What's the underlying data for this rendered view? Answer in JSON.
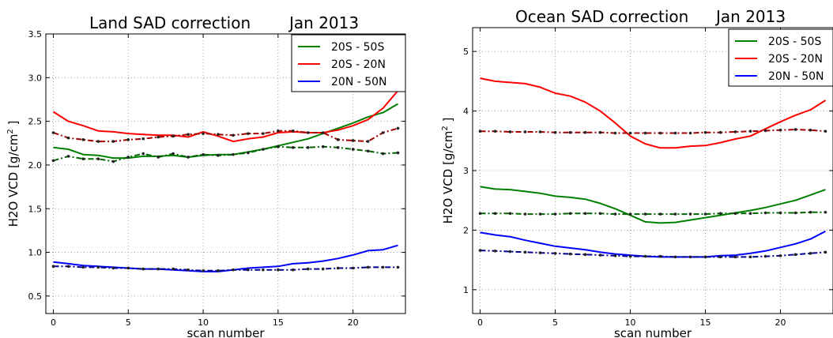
{
  "chart_data": [
    {
      "type": "line",
      "title": "Land SAD correction",
      "subtitle": "Jan 2013",
      "xlabel": "scan number",
      "ylabel_prefix": "H2O VCD [g/cm",
      "ylabel_sup": "2",
      "ylabel_suffix": " ]",
      "xlim": [
        -0.5,
        23.5
      ],
      "ylim": [
        0.3,
        3.5
      ],
      "xticks": [
        0,
        5,
        10,
        15,
        20
      ],
      "yticks": [
        0.5,
        1.0,
        1.5,
        2.0,
        2.5,
        3.0,
        3.5
      ],
      "ytick_labels": [
        "0.5",
        "1.0",
        "1.5",
        "2.0",
        "2.5",
        "3.0",
        "3.5"
      ],
      "grid": true,
      "legend_position": "top-right",
      "x": [
        0,
        1,
        2,
        3,
        4,
        5,
        6,
        7,
        8,
        9,
        10,
        11,
        12,
        13,
        14,
        15,
        16,
        17,
        18,
        19,
        20,
        21,
        22,
        23
      ],
      "series": [
        {
          "name": "20S - 50S",
          "color": "#008000",
          "style": "solid",
          "values": [
            2.2,
            2.18,
            2.12,
            2.11,
            2.08,
            2.08,
            2.1,
            2.1,
            2.11,
            2.09,
            2.11,
            2.12,
            2.12,
            2.15,
            2.18,
            2.22,
            2.26,
            2.3,
            2.36,
            2.42,
            2.48,
            2.55,
            2.6,
            2.7
          ]
        },
        {
          "name": "20S - 20N",
          "color": "#ff0000",
          "style": "solid",
          "values": [
            2.61,
            2.5,
            2.45,
            2.39,
            2.38,
            2.36,
            2.35,
            2.34,
            2.34,
            2.32,
            2.38,
            2.33,
            2.27,
            2.3,
            2.32,
            2.37,
            2.38,
            2.37,
            2.37,
            2.4,
            2.45,
            2.52,
            2.65,
            2.85
          ]
        },
        {
          "name": "20N - 50N",
          "color": "#0000ff",
          "style": "solid",
          "values": [
            0.89,
            0.87,
            0.85,
            0.84,
            0.83,
            0.82,
            0.81,
            0.81,
            0.8,
            0.79,
            0.78,
            0.78,
            0.8,
            0.82,
            0.83,
            0.84,
            0.87,
            0.88,
            0.9,
            0.93,
            0.97,
            1.02,
            1.03,
            1.08
          ]
        },
        {
          "name": "",
          "color": "#006400",
          "style": "dashdot",
          "values": [
            2.05,
            2.1,
            2.07,
            2.07,
            2.04,
            2.09,
            2.13,
            2.09,
            2.13,
            2.09,
            2.12,
            2.11,
            2.12,
            2.14,
            2.18,
            2.21,
            2.2,
            2.2,
            2.21,
            2.2,
            2.18,
            2.16,
            2.13,
            2.14
          ]
        },
        {
          "name": "",
          "color": "#a00000",
          "style": "dashdot",
          "values": [
            2.37,
            2.31,
            2.29,
            2.27,
            2.27,
            2.29,
            2.3,
            2.32,
            2.33,
            2.35,
            2.36,
            2.35,
            2.34,
            2.36,
            2.36,
            2.39,
            2.39,
            2.37,
            2.37,
            2.29,
            2.28,
            2.27,
            2.37,
            2.42
          ]
        },
        {
          "name": "",
          "color": "#00008b",
          "style": "dashdot",
          "values": [
            0.84,
            0.84,
            0.83,
            0.83,
            0.82,
            0.82,
            0.81,
            0.81,
            0.81,
            0.8,
            0.79,
            0.79,
            0.8,
            0.8,
            0.8,
            0.8,
            0.8,
            0.81,
            0.81,
            0.82,
            0.82,
            0.83,
            0.83,
            0.83
          ]
        }
      ]
    },
    {
      "type": "line",
      "title": "Ocean SAD correction",
      "subtitle": "Jan 2013",
      "xlabel": "scan number",
      "ylabel_prefix": "H2O VCD [g/cm",
      "ylabel_sup": "2",
      "ylabel_suffix": " ]",
      "xlim": [
        -0.5,
        23.5
      ],
      "ylim": [
        0.6,
        5.4
      ],
      "xticks": [
        0,
        5,
        10,
        15,
        20
      ],
      "yticks": [
        1,
        2,
        3,
        4,
        5
      ],
      "ytick_labels": [
        "1",
        "2",
        "3",
        "4",
        "5"
      ],
      "grid": true,
      "legend_position": "top-right",
      "x": [
        0,
        1,
        2,
        3,
        4,
        5,
        6,
        7,
        8,
        9,
        10,
        11,
        12,
        13,
        14,
        15,
        16,
        17,
        18,
        19,
        20,
        21,
        22,
        23
      ],
      "series": [
        {
          "name": "20S - 50S",
          "color": "#008000",
          "style": "solid",
          "values": [
            2.73,
            2.69,
            2.68,
            2.65,
            2.62,
            2.57,
            2.55,
            2.52,
            2.45,
            2.36,
            2.25,
            2.14,
            2.12,
            2.13,
            2.17,
            2.21,
            2.25,
            2.29,
            2.33,
            2.38,
            2.44,
            2.5,
            2.59,
            2.68
          ]
        },
        {
          "name": "20S - 20N",
          "color": "#ff0000",
          "style": "solid",
          "values": [
            4.55,
            4.5,
            4.48,
            4.46,
            4.4,
            4.3,
            4.25,
            4.15,
            4.0,
            3.8,
            3.58,
            3.45,
            3.38,
            3.38,
            3.41,
            3.42,
            3.47,
            3.53,
            3.58,
            3.7,
            3.82,
            3.93,
            4.02,
            4.18
          ]
        },
        {
          "name": "20N - 50N",
          "color": "#0000ff",
          "style": "solid",
          "values": [
            1.96,
            1.92,
            1.89,
            1.83,
            1.78,
            1.73,
            1.7,
            1.67,
            1.63,
            1.6,
            1.58,
            1.56,
            1.55,
            1.55,
            1.55,
            1.55,
            1.57,
            1.58,
            1.61,
            1.65,
            1.71,
            1.77,
            1.85,
            1.98
          ]
        },
        {
          "name": "",
          "color": "#006400",
          "style": "dashdot",
          "values": [
            2.28,
            2.28,
            2.28,
            2.27,
            2.27,
            2.27,
            2.28,
            2.28,
            2.28,
            2.27,
            2.27,
            2.27,
            2.27,
            2.27,
            2.27,
            2.27,
            2.28,
            2.28,
            2.28,
            2.29,
            2.29,
            2.29,
            2.3,
            2.3
          ]
        },
        {
          "name": "",
          "color": "#a00000",
          "style": "dashdot",
          "values": [
            3.66,
            3.66,
            3.65,
            3.65,
            3.65,
            3.64,
            3.64,
            3.64,
            3.64,
            3.63,
            3.63,
            3.63,
            3.63,
            3.63,
            3.63,
            3.64,
            3.64,
            3.65,
            3.66,
            3.67,
            3.68,
            3.69,
            3.68,
            3.66
          ]
        },
        {
          "name": "",
          "color": "#00008b",
          "style": "dashdot",
          "values": [
            1.66,
            1.65,
            1.64,
            1.63,
            1.62,
            1.61,
            1.6,
            1.59,
            1.58,
            1.57,
            1.56,
            1.56,
            1.56,
            1.55,
            1.55,
            1.55,
            1.55,
            1.55,
            1.55,
            1.56,
            1.57,
            1.59,
            1.61,
            1.63
          ]
        }
      ]
    }
  ]
}
